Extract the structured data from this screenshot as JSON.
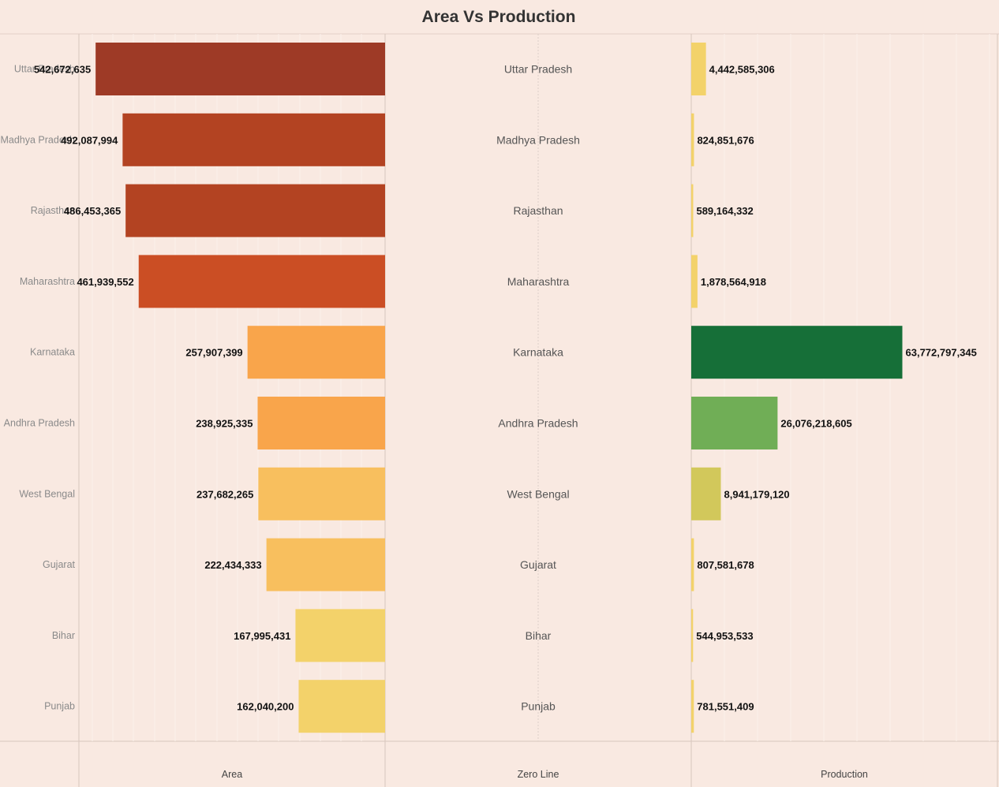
{
  "chart_data": {
    "type": "bar",
    "title": "Area Vs Production",
    "categories": [
      "Uttar Pradesh",
      "Madhya Pradesh",
      "Rajasthan",
      "Maharashtra",
      "Karnataka",
      "Andhra Pradesh",
      "West Bengal",
      "Gujarat",
      "Bihar",
      "Punjab"
    ],
    "area": {
      "label": "Area",
      "values": [
        542672635,
        492087994,
        486453365,
        461939552,
        257907399,
        238925335,
        237682265,
        222434333,
        167995431,
        162040200
      ],
      "value_labels": [
        "542,672,635",
        "492,087,994",
        "486,453,365",
        "461,939,552",
        "257,907,399",
        "238,925,335",
        "237,682,265",
        "222,434,333",
        "167,995,431",
        "162,040,200"
      ],
      "colors": [
        "#9e3a26",
        "#b34322",
        "#b34322",
        "#cb4e24",
        "#f9a54b",
        "#f9a54b",
        "#f8bf5e",
        "#f8bf5e",
        "#f3d26a",
        "#f3d26a"
      ],
      "direction": "leftward"
    },
    "zero_line": {
      "label": "Zero Line",
      "row_labels": [
        "Uttar Pradesh",
        "Madhya Pradesh",
        "Rajasthan",
        "Maharashtra",
        "Karnataka",
        "Andhra Pradesh",
        "West Bengal",
        "Gujarat",
        "Bihar",
        "Punjab"
      ]
    },
    "production": {
      "label": "Production",
      "values": [
        4442585306,
        824851676,
        589164332,
        1878564918,
        63772797345,
        26076218605,
        8941179120,
        807581678,
        544953533,
        781551409
      ],
      "value_labels": [
        "4,442,585,306",
        "824,851,676",
        "589,164,332",
        "1,878,564,918",
        "63,772,797,345",
        "26,076,218,605",
        "8,941,179,120",
        "807,581,678",
        "544,953,533",
        "781,551,409"
      ],
      "colors": [
        "#f3d26a",
        "#f3d26a",
        "#f3d26a",
        "#f3d26a",
        "#166f38",
        "#70ae56",
        "#d2c85b",
        "#f3d26a",
        "#f3d26a",
        "#f3d26a"
      ]
    },
    "background_color": "#f9e9e1",
    "grid": true
  }
}
